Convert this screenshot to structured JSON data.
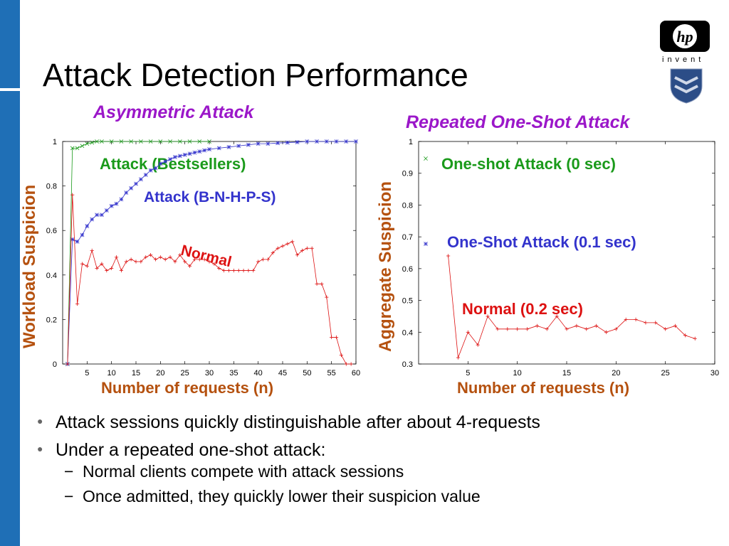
{
  "slide": {
    "title": "Attack Detection Performance",
    "logo_text": "invent"
  },
  "bullets": [
    {
      "text": "Attack sessions quickly distinguishable after about 4-requests",
      "sub": []
    },
    {
      "text": "Under a repeated one-shot attack:",
      "sub": [
        "Normal clients compete with attack sessions",
        "Once admitted, they quickly lower their suspicion value"
      ]
    }
  ],
  "colors": {
    "left_bar": "#1f6fb6",
    "title_purple": "#9b17c9",
    "axis_label_brown": "#b5510f",
    "series_green": "#1a9a1a",
    "series_blue": "#3333cc",
    "series_red": "#dd1111"
  },
  "icons": [
    "hp-logo-icon",
    "university-shield-icon"
  ],
  "chart_data": [
    {
      "type": "line",
      "title": "Asymmetric Attack",
      "xlabel": "Number of requests (n)",
      "ylabel": "Workload Suspicion",
      "xlim": [
        0,
        60
      ],
      "ylim": [
        0,
        1
      ],
      "xticks": [
        5,
        10,
        15,
        20,
        25,
        30,
        35,
        40,
        45,
        50,
        55,
        60
      ],
      "yticks": [
        0,
        0.2,
        0.4,
        0.6,
        0.8,
        1
      ],
      "ytick_labels": [
        "0",
        "0.2",
        "0.4",
        "0.6",
        "0.8",
        "1"
      ],
      "series": [
        {
          "name": "Attack (Bestsellers)",
          "color": "#1a9a1a",
          "marker": "x",
          "x": [
            1,
            2,
            3,
            4,
            5,
            6,
            7,
            8,
            10,
            12,
            14,
            16,
            18,
            20,
            22,
            24,
            26,
            28,
            30
          ],
          "y": [
            0,
            0.97,
            0.97,
            0.98,
            0.99,
            0.995,
            1,
            1,
            1,
            1,
            1,
            1,
            1,
            1,
            1,
            1,
            1,
            1,
            1
          ]
        },
        {
          "name": "Attack (B-N-H-P-S)",
          "color": "#3333cc",
          "marker": "*",
          "x": [
            1,
            2,
            3,
            4,
            5,
            6,
            7,
            8,
            9,
            10,
            11,
            12,
            13,
            14,
            15,
            16,
            17,
            18,
            19,
            20,
            21,
            22,
            23,
            24,
            25,
            26,
            27,
            28,
            29,
            30,
            32,
            34,
            36,
            38,
            40,
            42,
            44,
            46,
            48,
            50,
            52,
            54,
            56,
            58,
            60
          ],
          "y": [
            0,
            0.56,
            0.55,
            0.58,
            0.62,
            0.65,
            0.67,
            0.67,
            0.69,
            0.71,
            0.72,
            0.74,
            0.77,
            0.79,
            0.81,
            0.83,
            0.85,
            0.87,
            0.88,
            0.9,
            0.91,
            0.92,
            0.93,
            0.935,
            0.94,
            0.945,
            0.95,
            0.955,
            0.96,
            0.965,
            0.97,
            0.975,
            0.98,
            0.985,
            0.99,
            0.99,
            0.993,
            0.995,
            0.997,
            1,
            1,
            1,
            1,
            1,
            1
          ]
        },
        {
          "name": "Normal",
          "color": "#dd1111",
          "marker": "+",
          "x": [
            1,
            2,
            3,
            4,
            5,
            6,
            7,
            8,
            9,
            10,
            11,
            12,
            13,
            14,
            15,
            16,
            17,
            18,
            19,
            20,
            21,
            22,
            23,
            24,
            25,
            26,
            27,
            28,
            29,
            30,
            31,
            32,
            33,
            34,
            35,
            36,
            37,
            38,
            39,
            40,
            41,
            42,
            43,
            44,
            45,
            46,
            47,
            48,
            49,
            50,
            51,
            52,
            53,
            54,
            55,
            56,
            57,
            58,
            59
          ],
          "y": [
            0,
            0.76,
            0.27,
            0.45,
            0.44,
            0.51,
            0.43,
            0.45,
            0.42,
            0.43,
            0.48,
            0.42,
            0.46,
            0.47,
            0.46,
            0.46,
            0.48,
            0.49,
            0.47,
            0.48,
            0.47,
            0.48,
            0.46,
            0.49,
            0.46,
            0.44,
            0.47,
            0.47,
            0.47,
            0.46,
            0.45,
            0.43,
            0.42,
            0.42,
            0.42,
            0.42,
            0.42,
            0.42,
            0.42,
            0.46,
            0.47,
            0.47,
            0.5,
            0.52,
            0.53,
            0.54,
            0.55,
            0.49,
            0.51,
            0.52,
            0.52,
            0.36,
            0.36,
            0.3,
            0.12,
            0.12,
            0.04,
            0.0,
            0.0
          ]
        }
      ],
      "annotations": [
        "Attack (Bestsellers)",
        "Attack (B-N-H-P-S)",
        "Normal"
      ]
    },
    {
      "type": "line",
      "title": "Repeated One-Shot Attack",
      "xlabel": "Number of requests (n)",
      "ylabel": "Aggregate Suspicion",
      "xlim": [
        0,
        30
      ],
      "ylim": [
        0.3,
        1
      ],
      "xticks": [
        5,
        10,
        15,
        20,
        25,
        30
      ],
      "yticks": [
        0.3,
        0.4,
        0.5,
        0.6,
        0.7,
        0.8,
        0.9,
        1
      ],
      "ytick_labels": [
        "0.3",
        "0.4",
        "0.5",
        "0.6",
        "0.7",
        "0.8",
        "0.9",
        "1"
      ],
      "series": [
        {
          "name": "One-shot Attack (0 sec)",
          "color": "#1a9a1a",
          "marker": "x",
          "x": [
            1
          ],
          "y": [
            0.97
          ]
        },
        {
          "name": "One-Shot Attack (0.1 sec)",
          "color": "#3333cc",
          "marker": "*",
          "x": [
            1
          ],
          "y": [
            0.67
          ]
        },
        {
          "name": "Normal (0.2 sec)",
          "color": "#dd1111",
          "marker": "+",
          "x": [
            3,
            4,
            5,
            6,
            7,
            8,
            9,
            10,
            11,
            12,
            13,
            14,
            15,
            16,
            17,
            18,
            19,
            20,
            21,
            22,
            23,
            24,
            25,
            26,
            27,
            28
          ],
          "y": [
            0.64,
            0.32,
            0.4,
            0.36,
            0.45,
            0.41,
            0.41,
            0.41,
            0.41,
            0.42,
            0.41,
            0.45,
            0.41,
            0.42,
            0.41,
            0.42,
            0.4,
            0.41,
            0.44,
            0.44,
            0.43,
            0.43,
            0.41,
            0.42,
            0.39,
            0.38
          ]
        }
      ],
      "annotations": [
        "One-shot Attack (0 sec)",
        "One-Shot Attack (0.1 sec)",
        "Normal (0.2 sec)"
      ]
    }
  ]
}
